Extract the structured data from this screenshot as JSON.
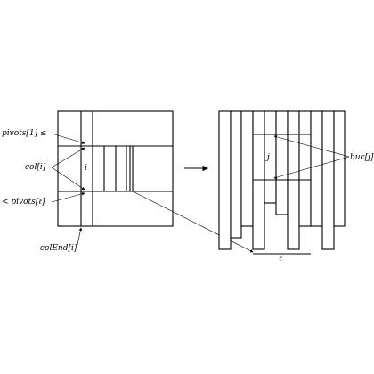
{
  "labels": {
    "pivots_top": "pivots[1] ≤",
    "col_i": "col[i]",
    "pivots_bottom": "< pivots[ℓ]",
    "col_end": "colEnd[i]",
    "i": "i",
    "j": "j",
    "buc_j": "buc[j]",
    "ell": "ℓ"
  }
}
